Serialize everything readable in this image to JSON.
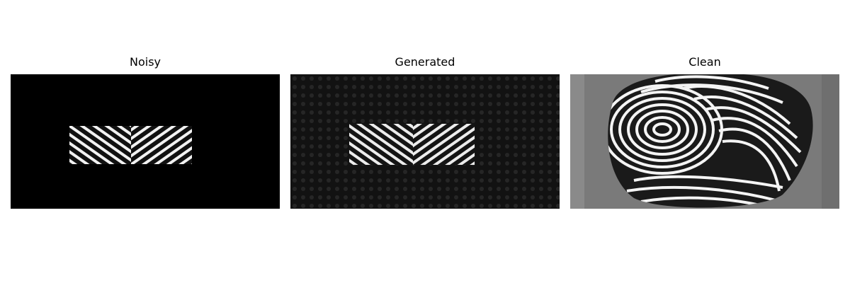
{
  "panels": [
    {
      "title": "Noisy"
    },
    {
      "title": "Generated"
    },
    {
      "title": "Clean"
    }
  ],
  "colors": {
    "background": "#ffffff",
    "noisy_background": "#000000",
    "generated_background": "#141414",
    "clean_background": "#7a7a7a",
    "ridge_light": "#ffffff",
    "ridge_dark": "#111111"
  }
}
